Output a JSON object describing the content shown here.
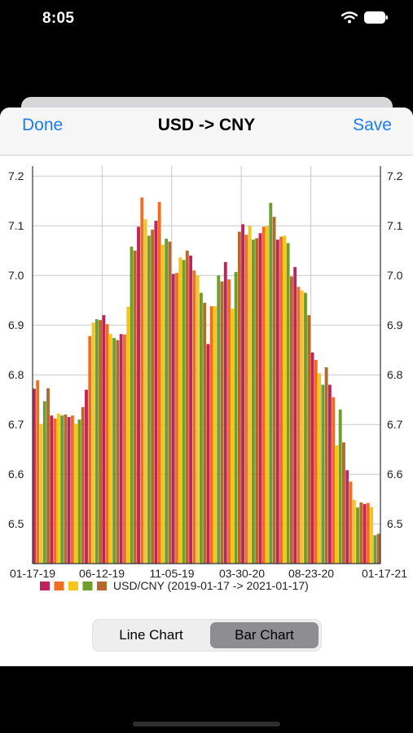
{
  "status": {
    "time": "8:05"
  },
  "nav": {
    "done_label": "Done",
    "title": "USD -> CNY",
    "save_label": "Save"
  },
  "segments": {
    "line_label": "Line Chart",
    "bar_label": "Bar Chart",
    "selected": "Bar Chart"
  },
  "chart_data": {
    "type": "bar",
    "ylim": [
      6.42,
      7.22
    ],
    "y_ticks": [
      "7.2",
      "7.1",
      "7.0",
      "6.9",
      "6.8",
      "6.7",
      "6.6",
      "6.5"
    ],
    "x_tick_labels": [
      "01-17-19",
      "06-12-19",
      "11-05-19",
      "03-30-20",
      "08-23-20",
      "01-17-21"
    ],
    "legend_label": "USD/CNY (2019-01-17 -> 2021-01-17)",
    "grid": true,
    "bar_colors": [
      "#c0245c",
      "#f26d1d",
      "#f5c518",
      "#6e9e2b",
      "#b36a2c"
    ],
    "values": [
      6.772,
      6.789,
      6.701,
      6.747,
      6.773,
      6.718,
      6.712,
      6.722,
      6.718,
      6.72,
      6.715,
      6.718,
      6.701,
      6.71,
      6.735,
      6.77,
      6.878,
      6.905,
      6.912,
      6.91,
      6.92,
      6.902,
      6.882,
      6.874,
      6.87,
      6.882,
      6.881,
      6.937,
      7.058,
      7.05,
      7.098,
      7.157,
      7.113,
      7.08,
      7.092,
      7.11,
      7.148,
      7.062,
      7.074,
      7.068,
      7.003,
      7.005,
      7.036,
      7.031,
      7.05,
      7.04,
      7.01,
      7.0,
      6.965,
      6.945,
      6.862,
      6.938,
      6.938,
      7.0,
      6.988,
      7.027,
      6.992,
      6.933,
      7.007,
      7.088,
      7.103,
      7.082,
      7.1,
      7.072,
      7.075,
      7.085,
      7.098,
      7.1,
      7.146,
      7.118,
      7.072,
      7.078,
      7.08,
      7.065,
      6.998,
      7.017,
      6.977,
      6.97,
      6.965,
      6.92,
      6.845,
      6.83,
      6.803,
      6.78,
      6.815,
      6.78,
      6.755,
      6.658,
      6.73,
      6.664,
      6.608,
      6.585,
      6.548,
      6.533,
      6.543,
      6.54,
      6.542,
      6.534,
      6.477,
      6.48
    ]
  }
}
